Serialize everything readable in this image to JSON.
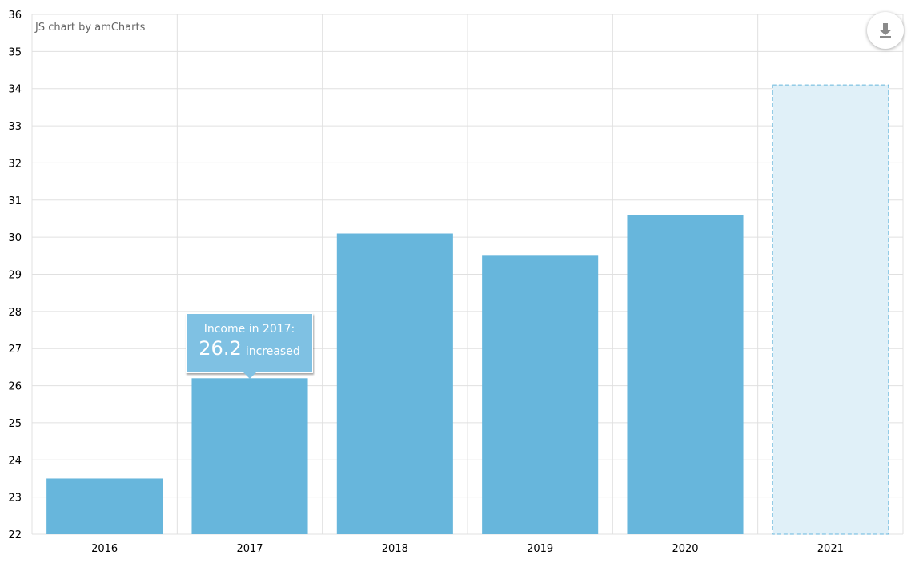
{
  "credit": "JS chart by amCharts",
  "tooltip": {
    "title": "Income in 2017:",
    "value": "26.2",
    "note": "increased"
  },
  "export_icon": "download-icon",
  "colors": {
    "bar": "#67b6dc",
    "projected_fill": "#e0f0f8",
    "projected_border": "#67b6dc",
    "grid": "#e0e0e0",
    "balloon": "#7fc1e3"
  },
  "chart_data": {
    "type": "bar",
    "categories": [
      "2016",
      "2017",
      "2018",
      "2019",
      "2020",
      "2021"
    ],
    "values": [
      23.5,
      26.2,
      30.1,
      29.5,
      30.6,
      34.1
    ],
    "projected": [
      false,
      false,
      false,
      false,
      false,
      true
    ],
    "ylim": [
      22,
      36
    ],
    "yticks": [
      22,
      23,
      24,
      25,
      26,
      27,
      28,
      29,
      30,
      31,
      32,
      33,
      34,
      35,
      36
    ],
    "grid": true,
    "title": "",
    "xlabel": "",
    "ylabel": ""
  }
}
